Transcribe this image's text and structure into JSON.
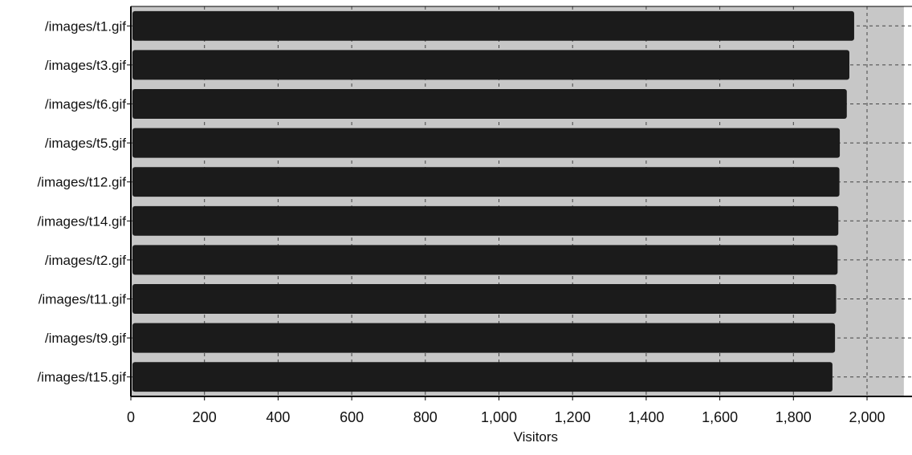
{
  "chart_data": {
    "type": "bar",
    "orientation": "horizontal",
    "categories": [
      "/images/t1.gif",
      "/images/t3.gif",
      "/images/t6.gif",
      "/images/t5.gif",
      "/images/t12.gif",
      "/images/t14.gif",
      "/images/t2.gif",
      "/images/t11.gif",
      "/images/t9.gif",
      "/images/t15.gif"
    ],
    "values": [
      1965,
      1952,
      1945,
      1926,
      1925,
      1922,
      1920,
      1916,
      1913,
      1906
    ],
    "xlabel": "Visitors",
    "ylabel": "",
    "title": "",
    "xlim": [
      0,
      2100
    ],
    "xticks": [
      0,
      200,
      400,
      600,
      800,
      1000,
      1200,
      1400,
      1600,
      1800,
      2000
    ],
    "xtick_labels": [
      "0",
      "200",
      "400",
      "600",
      "800",
      "1,000",
      "1,200",
      "1,400",
      "1,600",
      "1,800",
      "2,000"
    ],
    "grid": true,
    "legend": "none",
    "colors": {
      "bar": "#1b1b1b",
      "band": "#c7c7c7",
      "grid": "#444444",
      "axis": "#000000",
      "text": "#111111"
    }
  }
}
